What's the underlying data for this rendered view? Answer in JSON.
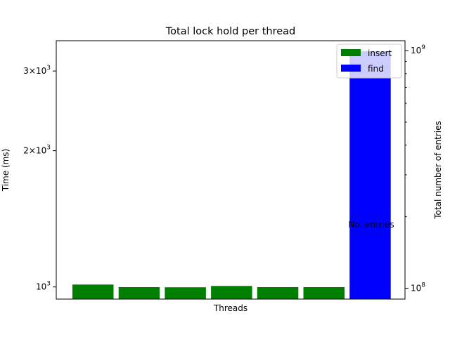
{
  "chart_data": {
    "type": "bar",
    "title": "Total lock hold per thread",
    "xlabel": "Threads",
    "ylabel": "Time (ms)",
    "y2label": "Total number of entries",
    "yscale": "log",
    "ylim": [
      940,
      3500
    ],
    "y2scale": "log",
    "y2lim": [
      90000000,
      1100000000
    ],
    "yticks": [
      {
        "value": 1000,
        "base": "10",
        "exp": "3",
        "mult": ""
      },
      {
        "value": 2000,
        "base": "10",
        "exp": "3",
        "mult": "2×"
      },
      {
        "value": 3000,
        "base": "10",
        "exp": "3",
        "mult": "3×"
      }
    ],
    "y2ticks": [
      {
        "value": 100000000,
        "base": "10",
        "exp": "8"
      },
      {
        "value": 1000000000,
        "base": "10",
        "exp": "9"
      }
    ],
    "series": [
      {
        "name": "insert",
        "color": "#008000",
        "values": [
          1012,
          999,
          998,
          1005,
          999,
          999
        ]
      },
      {
        "name": "find",
        "color": "#0000ff",
        "values": [
          3320
        ]
      }
    ],
    "annotation": {
      "text": "No. entries",
      "y2_value": 185000000
    },
    "grid": false,
    "legend_position": "top-right"
  }
}
